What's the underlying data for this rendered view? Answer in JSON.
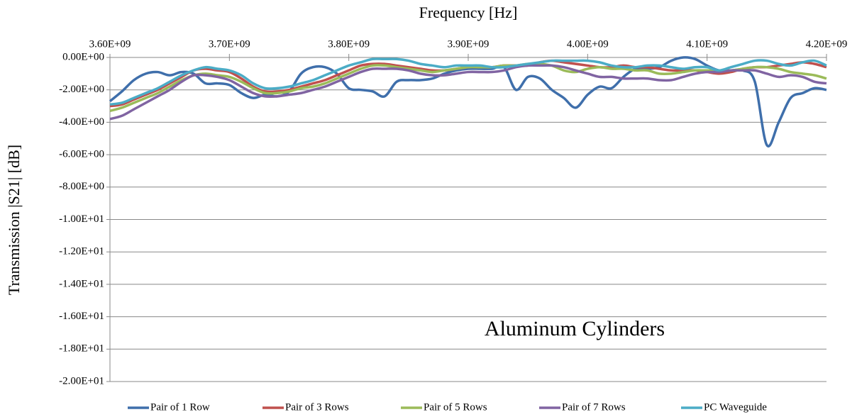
{
  "chart_data": {
    "type": "line",
    "xlabel": "Frequency [Hz]",
    "ylabel": "Transmission |S21| [dB]",
    "annotation": "Aluminum Cylinders",
    "x": [
      3600000000.0,
      3610000000.0,
      3620000000.0,
      3630000000.0,
      3640000000.0,
      3650000000.0,
      3660000000.0,
      3670000000.0,
      3680000000.0,
      3690000000.0,
      3700000000.0,
      3710000000.0,
      3720000000.0,
      3730000000.0,
      3740000000.0,
      3750000000.0,
      3760000000.0,
      3770000000.0,
      3780000000.0,
      3790000000.0,
      3800000000.0,
      3810000000.0,
      3820000000.0,
      3830000000.0,
      3840000000.0,
      3850000000.0,
      3860000000.0,
      3870000000.0,
      3880000000.0,
      3890000000.0,
      3900000000.0,
      3910000000.0,
      3920000000.0,
      3930000000.0,
      3940000000.0,
      3950000000.0,
      3960000000.0,
      3970000000.0,
      3980000000.0,
      3990000000.0,
      4000000000.0,
      4010000000.0,
      4020000000.0,
      4030000000.0,
      4040000000.0,
      4050000000.0,
      4060000000.0,
      4070000000.0,
      4080000000.0,
      4090000000.0,
      4100000000.0,
      4110000000.0,
      4120000000.0,
      4130000000.0,
      4140000000.0,
      4150000000.0,
      4160000000.0,
      4170000000.0,
      4180000000.0,
      4190000000.0,
      4200000000.0
    ],
    "series": [
      {
        "name": "Pair of 1 Row",
        "color": "#3f6fab",
        "values": [
          -2.7,
          -2.1,
          -1.4,
          -1.0,
          -0.9,
          -1.1,
          -0.9,
          -1.0,
          -1.6,
          -1.6,
          -1.7,
          -2.2,
          -2.5,
          -2.3,
          -2.4,
          -2.1,
          -1.0,
          -0.6,
          -0.6,
          -1.0,
          -1.9,
          -2.0,
          -2.1,
          -2.4,
          -1.5,
          -1.4,
          -1.4,
          -1.3,
          -1.0,
          -0.8,
          -0.7,
          -0.7,
          -0.7,
          -0.6,
          -2.0,
          -1.2,
          -1.3,
          -2.0,
          -2.5,
          -3.1,
          -2.3,
          -1.8,
          -1.9,
          -1.2,
          -0.7,
          -0.7,
          -0.6,
          -0.2,
          0.0,
          -0.1,
          -0.5,
          -0.8,
          -0.8,
          -0.8,
          -1.5,
          -5.4,
          -4.0,
          -2.5,
          -2.2,
          -1.9,
          -2.0
        ]
      },
      {
        "name": "Pair of 3 Rows",
        "color": "#c0504d",
        "values": [
          -3.0,
          -2.9,
          -2.6,
          -2.3,
          -2.0,
          -1.6,
          -1.2,
          -0.8,
          -0.7,
          -0.8,
          -0.9,
          -1.3,
          -1.8,
          -2.1,
          -2.1,
          -2.0,
          -1.8,
          -1.6,
          -1.4,
          -1.1,
          -0.8,
          -0.5,
          -0.4,
          -0.4,
          -0.5,
          -0.6,
          -0.7,
          -0.8,
          -0.8,
          -0.7,
          -0.6,
          -0.6,
          -0.6,
          -0.5,
          -0.5,
          -0.5,
          -0.3,
          -0.2,
          -0.3,
          -0.4,
          -0.5,
          -0.6,
          -0.6,
          -0.5,
          -0.6,
          -0.6,
          -0.7,
          -0.8,
          -0.8,
          -0.8,
          -0.9,
          -1.0,
          -0.9,
          -0.7,
          -0.6,
          -0.6,
          -0.5,
          -0.4,
          -0.3,
          -0.4,
          -0.6
        ]
      },
      {
        "name": "Pair of 5 Rows",
        "color": "#9bbb59",
        "values": [
          -3.3,
          -3.1,
          -2.8,
          -2.5,
          -2.2,
          -1.8,
          -1.4,
          -1.1,
          -1.0,
          -1.1,
          -1.2,
          -1.5,
          -1.9,
          -2.2,
          -2.2,
          -2.1,
          -1.9,
          -1.8,
          -1.6,
          -1.3,
          -1.0,
          -0.7,
          -0.5,
          -0.5,
          -0.6,
          -0.7,
          -0.8,
          -0.9,
          -0.8,
          -0.7,
          -0.6,
          -0.6,
          -0.6,
          -0.5,
          -0.5,
          -0.4,
          -0.4,
          -0.5,
          -0.8,
          -0.9,
          -0.7,
          -0.6,
          -0.7,
          -0.7,
          -0.8,
          -0.8,
          -1.0,
          -1.0,
          -0.9,
          -0.8,
          -0.8,
          -0.8,
          -0.8,
          -0.7,
          -0.6,
          -0.6,
          -0.7,
          -0.9,
          -1.0,
          -1.1,
          -1.3
        ]
      },
      {
        "name": "Pair of 7 Rows",
        "color": "#8064a2",
        "values": [
          -3.8,
          -3.6,
          -3.2,
          -2.8,
          -2.4,
          -2.0,
          -1.5,
          -1.1,
          -1.1,
          -1.2,
          -1.4,
          -1.8,
          -2.2,
          -2.4,
          -2.4,
          -2.3,
          -2.2,
          -2.0,
          -1.8,
          -1.5,
          -1.2,
          -0.9,
          -0.7,
          -0.7,
          -0.7,
          -0.8,
          -1.0,
          -1.1,
          -1.1,
          -1.0,
          -0.9,
          -0.9,
          -0.9,
          -0.8,
          -0.6,
          -0.5,
          -0.5,
          -0.5,
          -0.6,
          -0.8,
          -1.0,
          -1.2,
          -1.2,
          -1.3,
          -1.3,
          -1.3,
          -1.4,
          -1.4,
          -1.2,
          -1.0,
          -0.9,
          -0.9,
          -0.8,
          -0.8,
          -0.8,
          -1.0,
          -1.2,
          -1.1,
          -1.2,
          -1.5,
          -1.6
        ]
      },
      {
        "name": "PC Waveguide",
        "color": "#4bacc6",
        "values": [
          -2.9,
          -2.8,
          -2.5,
          -2.2,
          -1.9,
          -1.5,
          -1.1,
          -0.8,
          -0.6,
          -0.7,
          -0.8,
          -1.1,
          -1.6,
          -1.9,
          -1.9,
          -1.8,
          -1.6,
          -1.4,
          -1.1,
          -0.8,
          -0.5,
          -0.3,
          -0.1,
          -0.1,
          -0.1,
          -0.2,
          -0.4,
          -0.5,
          -0.6,
          -0.5,
          -0.5,
          -0.5,
          -0.6,
          -0.6,
          -0.5,
          -0.4,
          -0.3,
          -0.2,
          -0.2,
          -0.2,
          -0.2,
          -0.3,
          -0.5,
          -0.6,
          -0.6,
          -0.5,
          -0.5,
          -0.6,
          -0.7,
          -0.6,
          -0.6,
          -0.8,
          -0.6,
          -0.4,
          -0.2,
          -0.2,
          -0.4,
          -0.5,
          -0.3,
          -0.2,
          -0.5
        ]
      }
    ],
    "xlim": [
      3600000000.0,
      4200000000.0
    ],
    "xticks": [
      {
        "value": 3600000000.0,
        "label": "3.60E+09"
      },
      {
        "value": 3700000000.0,
        "label": "3.70E+09"
      },
      {
        "value": 3800000000.0,
        "label": "3.80E+09"
      },
      {
        "value": 3900000000.0,
        "label": "3.90E+09"
      },
      {
        "value": 4000000000.0,
        "label": "4.00E+09"
      },
      {
        "value": 4100000000.0,
        "label": "4.10E+09"
      },
      {
        "value": 4200000000.0,
        "label": "4.20E+09"
      }
    ],
    "ylim": [
      -20,
      0
    ],
    "yticks": [
      {
        "value": 0,
        "label": "0.00E+00"
      },
      {
        "value": -2,
        "label": "-2.00E+00"
      },
      {
        "value": -4,
        "label": "-4.00E+00"
      },
      {
        "value": -6,
        "label": "-6.00E+00"
      },
      {
        "value": -8,
        "label": "-8.00E+00"
      },
      {
        "value": -10,
        "label": "-1.00E+01"
      },
      {
        "value": -12,
        "label": "-1.20E+01"
      },
      {
        "value": -14,
        "label": "-1.40E+01"
      },
      {
        "value": -16,
        "label": "-1.60E+01"
      },
      {
        "value": -18,
        "label": "-1.80E+01"
      },
      {
        "value": -20,
        "label": "-2.00E+01"
      }
    ],
    "grid": true,
    "legend": "bottom"
  }
}
